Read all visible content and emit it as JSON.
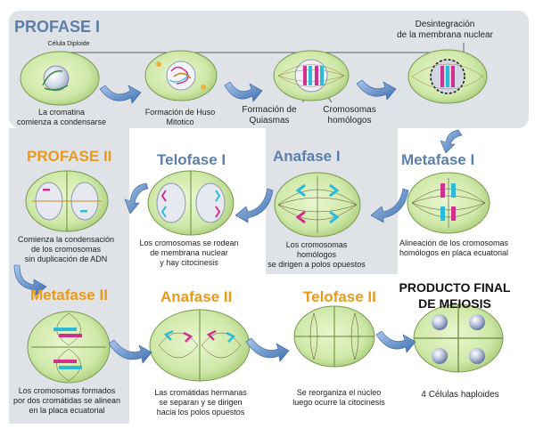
{
  "titles": {
    "profase1": "PROFASE I",
    "profase2": "PROFASE II",
    "telofase1": "Telofase I",
    "anafase1": "Anafase I",
    "metafase1": "Metafase I",
    "metafase2": "Metafase II",
    "anafase2": "Anafase II",
    "telofase2": "Telofase II",
    "producto_line1": "PRODUCTO FINAL",
    "producto_line2": "DE MEIOSIS"
  },
  "labels": {
    "celula_diploide": "Célula Diploide",
    "cromatina": "La cromatina\ncomienza a condensarse",
    "huso": "Formación de Huso\nMitotico",
    "quiasmas": "Formación de\nQuiasmas",
    "homologos": "Cromosomas\nhomólogos",
    "desintegracion": "Desintegración\nde la membrana nuclear",
    "alineacion": "Alineación de los cromosomas\nhomólogos en placa ecuatorial",
    "anafase1_desc": "Los cromosomas homólogos\nse dirigen a polos opuestos",
    "telofase1_desc": "Los cromosomas se rodean\nde membrana nuclear\ny hay citocinesis",
    "profase2_desc": "Comienza la condensación\nde los cromosomas\nsin duplicación de ADN",
    "metafase2_desc": "Los cromosomas formados\npor dos cromátidas se alinean\nen la placa ecuatorial",
    "anafase2_desc": "Las cromátidas hermanas\nse separan y se dirigen\nhacia los polos opuestos",
    "telofase2_desc": "Se reorganiza el núcleo\nluego ocurre la citocinesis",
    "haploides": "4 Células haploides"
  },
  "colors": {
    "cell_fill": "#cfe8a8",
    "cell_edge": "#7a9a50",
    "title_blue": "#5b7fa8",
    "title_orange": "#e89a1c",
    "arrow_blue": "#4a78b8",
    "panel_gray": "#dfe3e8",
    "chrom_magenta": "#d0318f",
    "chrom_cyan": "#2bbbd8"
  }
}
